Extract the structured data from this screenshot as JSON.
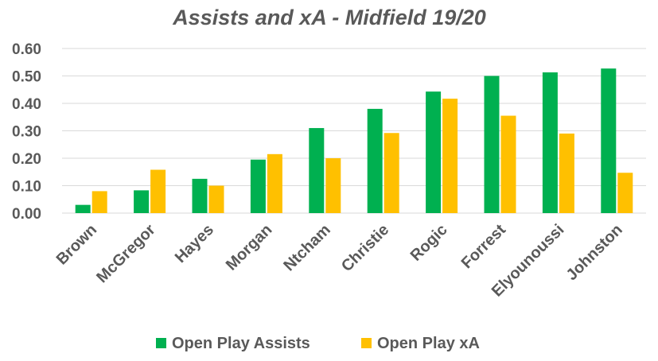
{
  "chart_data": {
    "type": "bar",
    "title": "Assists and xA - Midfield 19/20",
    "xlabel": "",
    "ylabel": "",
    "ylim": [
      0,
      0.6
    ],
    "yticks": [
      "0.00",
      "0.10",
      "0.20",
      "0.30",
      "0.40",
      "0.50",
      "0.60"
    ],
    "grid": true,
    "legend_position": "bottom",
    "categories": [
      "Brown",
      "McGregor",
      "Hayes",
      "Morgan",
      "Ntcham",
      "Christie",
      "Rogic",
      "Forrest",
      "Elyounoussi",
      "Johnston"
    ],
    "series": [
      {
        "name": "Open Play Assists",
        "color": "#00b050",
        "values": [
          0.03,
          0.083,
          0.125,
          0.195,
          0.31,
          0.38,
          0.443,
          0.5,
          0.513,
          0.527
        ]
      },
      {
        "name": "Open Play xA",
        "color": "#ffc000",
        "values": [
          0.08,
          0.158,
          0.1,
          0.215,
          0.2,
          0.292,
          0.417,
          0.355,
          0.29,
          0.147
        ]
      }
    ]
  }
}
